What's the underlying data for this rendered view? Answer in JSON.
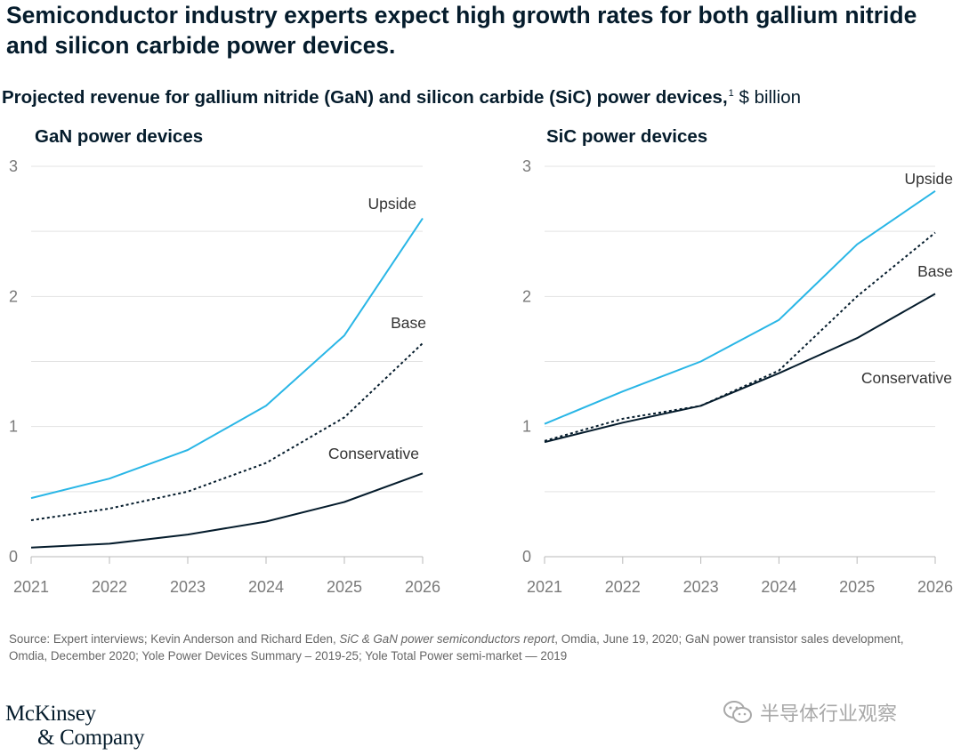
{
  "headline": "Semiconductor industry experts expect high growth rates for both gallium nitride and silicon carbide power devices.",
  "subtitle": {
    "bold": "Projected revenue for gallium nitride (GaN) and silicon carbide (SiC) power devices,",
    "footnote": "1",
    "unit": " $ billion"
  },
  "chart_data": [
    {
      "type": "line",
      "title": "GaN power devices",
      "x": [
        "2021",
        "2022",
        "2023",
        "2024",
        "2025",
        "2026"
      ],
      "ylim": [
        0,
        3
      ],
      "yticks": [
        "0",
        "1",
        "2",
        "3"
      ],
      "grid": true,
      "series": [
        {
          "name": "Upside",
          "style": "solid",
          "color": "#29b6e6",
          "values": [
            0.45,
            0.6,
            0.82,
            1.16,
            1.7,
            2.6
          ]
        },
        {
          "name": "Base",
          "style": "dotted",
          "color": "#051c2c",
          "values": [
            0.28,
            0.37,
            0.5,
            0.72,
            1.07,
            1.64
          ]
        },
        {
          "name": "Conservative",
          "style": "solid",
          "color": "#051c2c",
          "values": [
            0.07,
            0.1,
            0.17,
            0.27,
            0.42,
            0.64
          ]
        }
      ]
    },
    {
      "type": "line",
      "title": "SiC power devices",
      "x": [
        "2021",
        "2022",
        "2023",
        "2024",
        "2025",
        "2026"
      ],
      "ylim": [
        0,
        3
      ],
      "yticks": [
        "0",
        "1",
        "2",
        "3"
      ],
      "grid": true,
      "series": [
        {
          "name": "Upside",
          "style": "solid",
          "color": "#29b6e6",
          "values": [
            1.02,
            1.27,
            1.5,
            1.82,
            2.4,
            2.81
          ]
        },
        {
          "name": "Base",
          "style": "dotted",
          "color": "#051c2c",
          "values": [
            0.89,
            1.06,
            1.16,
            1.43,
            2.0,
            2.49
          ]
        },
        {
          "name": "Conservative",
          "style": "solid",
          "color": "#051c2c",
          "values": [
            0.88,
            1.03,
            1.16,
            1.41,
            1.68,
            2.02
          ]
        }
      ]
    }
  ],
  "source": {
    "before": "Source: Expert interviews; Kevin Anderson and Richard Eden, ",
    "italic": "SiC & GaN power semiconductors report",
    "after": ", Omdia, June 19, 2020; GaN power transistor sales development, Omdia, December 2020; Yole Power Devices Summary – 2019-25; Yole Total Power semi-market — 2019"
  },
  "logo": {
    "line1": "McKinsey",
    "line2": "& Company"
  },
  "watermark": {
    "icon": "wechat-icon",
    "text": "半导体行业观察"
  }
}
